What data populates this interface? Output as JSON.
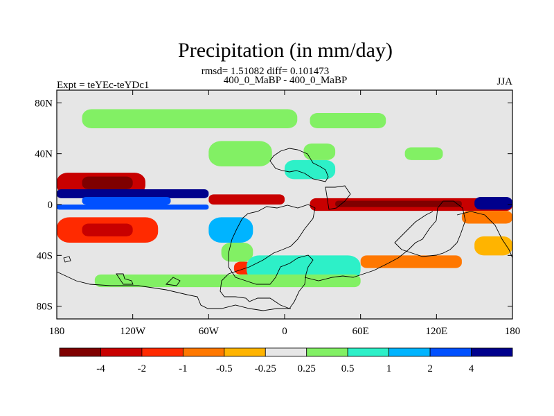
{
  "chart_data": {
    "type": "heatmap",
    "title": "Precipitation (in mm/day)",
    "stats_line": "rmsd= 1.51082 diff= 0.101473",
    "subtitle_center": "400_0_MaBP - 400_0_MaBP",
    "subtitle_left": "Expt = teYEc-teYDc1",
    "subtitle_right": "JJA",
    "x_range": [
      -180,
      180
    ],
    "y_range": [
      -90,
      90
    ],
    "x_ticks": [
      {
        "value": -180,
        "label": "180"
      },
      {
        "value": -120,
        "label": "120W"
      },
      {
        "value": -60,
        "label": "60W"
      },
      {
        "value": 0,
        "label": "0"
      },
      {
        "value": 60,
        "label": "60E"
      },
      {
        "value": 120,
        "label": "120E"
      },
      {
        "value": 180,
        "label": "180"
      }
    ],
    "y_ticks": [
      {
        "value": 80,
        "label": "80N"
      },
      {
        "value": 40,
        "label": "40N"
      },
      {
        "value": 0,
        "label": "0"
      },
      {
        "value": -40,
        "label": "40S"
      },
      {
        "value": -80,
        "label": "80S"
      }
    ],
    "colorbar": {
      "colors": [
        "#7f0000",
        "#c80000",
        "#ff2a00",
        "#ff7800",
        "#ffb400",
        "#e6e6e6",
        "#82f064",
        "#2df0c8",
        "#00b4ff",
        "#0050ff",
        "#00008c"
      ],
      "boundaries": [
        "-4",
        "-2",
        "-1",
        "-0.5",
        "-0.25",
        "0.25",
        "0.5",
        "1",
        "2",
        "4"
      ]
    },
    "bands": [
      {
        "lat": [
          60,
          75
        ],
        "lon": [
          -160,
          10
        ],
        "level": 6
      },
      {
        "lat": [
          60,
          72
        ],
        "lon": [
          20,
          80
        ],
        "level": 6
      },
      {
        "lat": [
          30,
          50
        ],
        "lon": [
          -60,
          -10
        ],
        "level": 6
      },
      {
        "lat": [
          35,
          48
        ],
        "lon": [
          15,
          40
        ],
        "level": 6
      },
      {
        "lat": [
          35,
          45
        ],
        "lon": [
          95,
          125
        ],
        "level": 6
      },
      {
        "lat": [
          8,
          25
        ],
        "lon": [
          -180,
          -110
        ],
        "level": 1
      },
      {
        "lat": [
          12,
          22
        ],
        "lon": [
          -160,
          -120
        ],
        "level": 0
      },
      {
        "lat": [
          5,
          12
        ],
        "lon": [
          -180,
          -60
        ],
        "level": 10
      },
      {
        "lat": [
          0,
          6
        ],
        "lon": [
          -160,
          -90
        ],
        "level": 9
      },
      {
        "lat": [
          0,
          8
        ],
        "lon": [
          -60,
          0
        ],
        "level": 1
      },
      {
        "lat": [
          -5,
          5
        ],
        "lon": [
          20,
          180
        ],
        "level": 1
      },
      {
        "lat": [
          -2,
          3
        ],
        "lon": [
          40,
          140
        ],
        "level": 0
      },
      {
        "lat": [
          -4,
          6
        ],
        "lon": [
          150,
          180
        ],
        "level": 10
      },
      {
        "lat": [
          -4,
          0
        ],
        "lon": [
          -180,
          -60
        ],
        "level": 9
      },
      {
        "lat": [
          -30,
          -10
        ],
        "lon": [
          -180,
          -100
        ],
        "level": 2
      },
      {
        "lat": [
          -25,
          -15
        ],
        "lon": [
          -160,
          -120
        ],
        "level": 1
      },
      {
        "lat": [
          -30,
          -10
        ],
        "lon": [
          -60,
          -25
        ],
        "level": 8
      },
      {
        "lat": [
          -45,
          -30
        ],
        "lon": [
          -50,
          -25
        ],
        "level": 6
      },
      {
        "lat": [
          -55,
          -45
        ],
        "lon": [
          -40,
          20
        ],
        "level": 2
      },
      {
        "lat": [
          -60,
          -40
        ],
        "lon": [
          -30,
          60
        ],
        "level": 7
      },
      {
        "lat": [
          -50,
          -40
        ],
        "lon": [
          60,
          140
        ],
        "level": 3
      },
      {
        "lat": [
          -65,
          -55
        ],
        "lon": [
          -150,
          60
        ],
        "level": 6
      },
      {
        "lat": [
          20,
          35
        ],
        "lon": [
          0,
          40
        ],
        "level": 7
      },
      {
        "lat": [
          -15,
          -5
        ],
        "lon": [
          140,
          180
        ],
        "level": 3
      },
      {
        "lat": [
          -40,
          -25
        ],
        "lon": [
          150,
          180
        ],
        "level": 4
      }
    ]
  }
}
